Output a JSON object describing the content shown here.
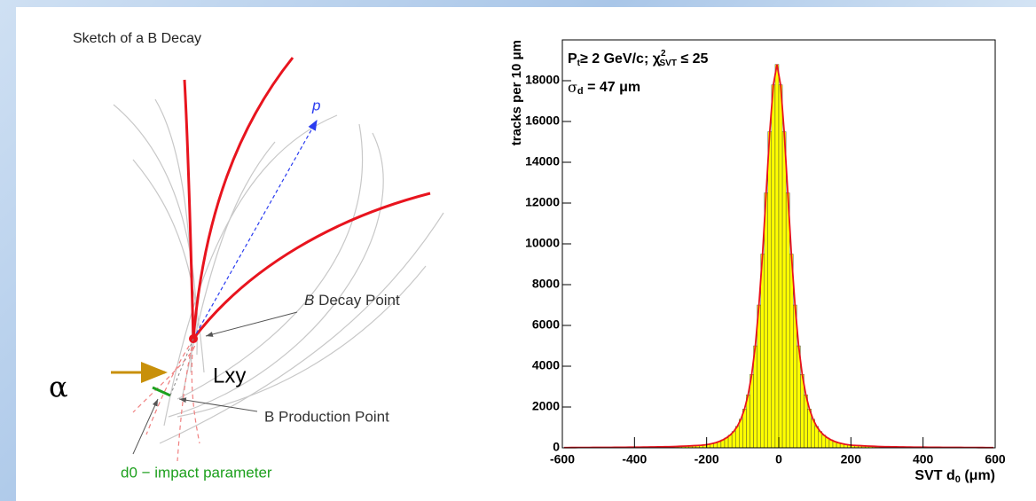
{
  "sketch": {
    "title": "Sketch of a B Decay",
    "momentum_label": "p",
    "decay_point_label": [
      "B",
      " Decay Point"
    ],
    "production_point_label": "B Production Point",
    "lxy_label": "Lxy",
    "alpha_label": "α",
    "d0_label": "d0 − impact parameter"
  },
  "chart_data": {
    "type": "histogram",
    "ylabel": "tracks per 10 μm",
    "xlabel_parts": [
      "SVT d",
      "0",
      " (μm)"
    ],
    "annotation_1": [
      "P",
      "t",
      "≥ 2 GeV/c; χ",
      "2",
      "SVT",
      " ≤ 25"
    ],
    "annotation_2": [
      "σ",
      "d",
      " = 47 μm"
    ],
    "color": "#ffff00",
    "edge_color": "#333333",
    "fit_color": "#e8141e",
    "xlim": [
      -600,
      600
    ],
    "ylim": [
      0,
      20000
    ],
    "xticks": [
      -600,
      -400,
      -200,
      0,
      200,
      400,
      600
    ],
    "yticks": [
      0,
      2000,
      4000,
      6000,
      8000,
      10000,
      12000,
      14000,
      16000,
      18000
    ],
    "bins": [
      -600,
      -590,
      -580,
      -570,
      -560,
      -550,
      -540,
      -530,
      -520,
      -510,
      -500,
      -490,
      -480,
      -470,
      -460,
      -450,
      -440,
      -430,
      -420,
      -410,
      -400,
      -390,
      -380,
      -370,
      -360,
      -350,
      -340,
      -330,
      -320,
      -310,
      -300,
      -290,
      -280,
      -270,
      -260,
      -250,
      -240,
      -230,
      -220,
      -210,
      -200,
      -190,
      -180,
      -170,
      -160,
      -150,
      -140,
      -130,
      -120,
      -110,
      -100,
      -90,
      -80,
      -70,
      -60,
      -50,
      -40,
      -30,
      -20,
      -10,
      0,
      10,
      20,
      30,
      40,
      50,
      60,
      70,
      80,
      90,
      100,
      110,
      120,
      130,
      140,
      150,
      160,
      170,
      180,
      190,
      200,
      210,
      220,
      230,
      240,
      250,
      260,
      270,
      280,
      290,
      300,
      310,
      320,
      330,
      340,
      350,
      360,
      370,
      380,
      390,
      400,
      410,
      420,
      430,
      440,
      450,
      460,
      470,
      480,
      490,
      500,
      510,
      520,
      530,
      540,
      550,
      560,
      570,
      580,
      590,
      600
    ],
    "values": [
      12,
      12,
      13,
      14,
      15,
      15,
      16,
      17,
      18,
      19,
      20,
      21,
      22,
      23,
      24,
      25,
      26,
      28,
      29,
      30,
      32,
      34,
      36,
      38,
      40,
      43,
      46,
      49,
      52,
      55,
      60,
      66,
      73,
      80,
      88,
      95,
      105,
      115,
      125,
      140,
      170,
      205,
      250,
      310,
      390,
      490,
      620,
      800,
      1050,
      1400,
      1900,
      2600,
      3600,
      5000,
      7000,
      9500,
      12500,
      15500,
      17800,
      18800,
      17800,
      15500,
      12500,
      9500,
      7000,
      5000,
      3600,
      2600,
      1900,
      1400,
      1050,
      800,
      620,
      490,
      390,
      310,
      250,
      205,
      170,
      140,
      125,
      115,
      105,
      95,
      88,
      80,
      73,
      66,
      60,
      55,
      52,
      49,
      46,
      43,
      40,
      38,
      36,
      34,
      32,
      30,
      29,
      28,
      26,
      25,
      24,
      23,
      22,
      21,
      20,
      19,
      18,
      17,
      16,
      15,
      15,
      14,
      13,
      12,
      12,
      11
    ]
  }
}
